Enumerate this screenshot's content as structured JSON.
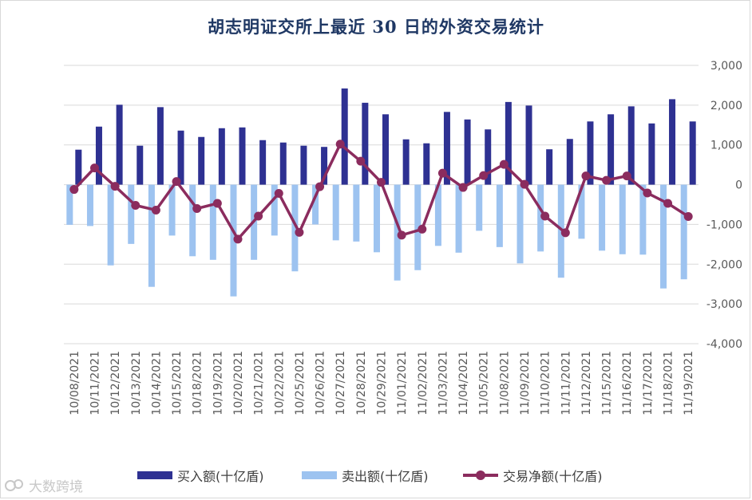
{
  "chart_data": {
    "type": "bar+line",
    "title": "胡志明证交所上最近 30 日的外资交易统计",
    "categories": [
      "10/08/2021",
      "10/11/2021",
      "10/12/2021",
      "10/13/2021",
      "10/14/2021",
      "10/15/2021",
      "10/18/2021",
      "10/19/2021",
      "10/20/2021",
      "10/21/2021",
      "10/22/2021",
      "10/25/2021",
      "10/26/2021",
      "10/27/2021",
      "10/28/2021",
      "10/29/2021",
      "11/01/2021",
      "11/02/2021",
      "11/03/2021",
      "11/04/2021",
      "11/05/2021",
      "11/08/2021",
      "11/09/2021",
      "11/10/2021",
      "11/11/2021",
      "11/12/2021",
      "11/15/2021",
      "11/16/2021",
      "11/17/2021",
      "11/18/2021",
      "11/19/2021"
    ],
    "series": [
      {
        "name": "买入额(十亿盾)",
        "type": "bar",
        "color": "#2e3192",
        "values": [
          880,
          1460,
          2010,
          980,
          1950,
          1360,
          1200,
          1420,
          1440,
          1120,
          1060,
          980,
          950,
          2420,
          2060,
          1770,
          1140,
          1040,
          1830,
          1640,
          1390,
          2080,
          1990,
          890,
          1150,
          1590,
          1770,
          1970,
          1540,
          2150,
          1590
        ]
      },
      {
        "name": "卖出额(十亿盾)",
        "type": "bar",
        "color": "#9dc3f0",
        "values": [
          -1010,
          -1040,
          -2030,
          -1490,
          -2570,
          -1280,
          -1800,
          -1890,
          -2810,
          -1890,
          -1280,
          -2180,
          -1000,
          -1400,
          -1430,
          -1700,
          -2410,
          -2150,
          -1540,
          -1710,
          -1160,
          -1570,
          -1980,
          -1680,
          -2340,
          -1360,
          -1660,
          -1750,
          -1760,
          -2610,
          -2380
        ]
      },
      {
        "name": "交易净额(十亿盾)",
        "type": "line",
        "color": "#8b2c5e",
        "values": [
          -120,
          420,
          -40,
          -520,
          -640,
          80,
          -600,
          -470,
          -1370,
          -790,
          -220,
          -1200,
          -50,
          1020,
          590,
          60,
          -1270,
          -1120,
          290,
          -70,
          230,
          510,
          10,
          -790,
          -1210,
          220,
          110,
          220,
          -210,
          -470,
          -800
        ]
      }
    ],
    "y_axis": {
      "min": -4000,
      "max": 3000,
      "step": 1000,
      "position": "right",
      "tick_labels": [
        "3,000",
        "2,000",
        "1,000",
        "0",
        "-1,000",
        "-2,000",
        "-3,000",
        "-4,000"
      ]
    },
    "grid": true,
    "legend_position": "bottom"
  },
  "legend": {
    "buy_label": "买入额(十亿盾)",
    "sell_label": "卖出额(十亿盾)",
    "net_label": "交易净额(十亿盾)"
  },
  "watermark": "大数跨境",
  "colors": {
    "buy": "#2e3192",
    "sell": "#9dc3f0",
    "net": "#8b2c5e",
    "grid": "#d9d9d9",
    "axis_text": "#595959"
  }
}
